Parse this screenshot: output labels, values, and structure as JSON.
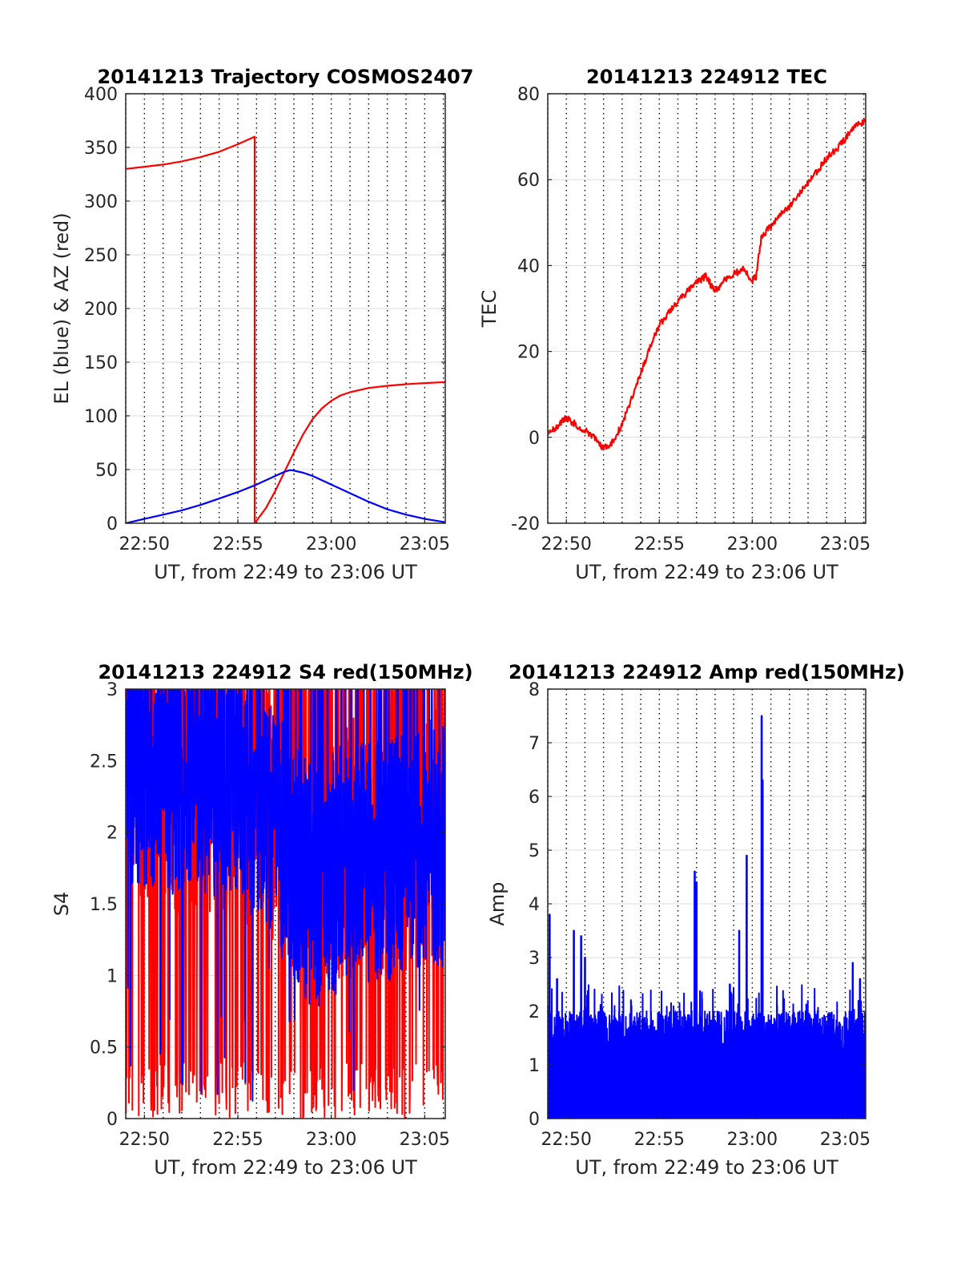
{
  "chart_data": [
    {
      "id": "trajectory",
      "type": "line",
      "title": "20141213 Trajectory COSMOS2407",
      "xlabel": "UT, from 22:49 to 23:06 UT",
      "ylabel": "EL (blue) & AZ (red)",
      "x_tick_labels": [
        "22:50",
        "22:55",
        "23:00",
        "23:05"
      ],
      "x_ticks_min": [
        50,
        55,
        60,
        65
      ],
      "xlim_min": [
        49,
        66.1
      ],
      "ylim": [
        0,
        400
      ],
      "y_ticks": [
        0,
        50,
        100,
        150,
        200,
        250,
        300,
        350,
        400
      ],
      "grid": true,
      "series": [
        {
          "color": "#ff0000",
          "x": [
            49,
            50,
            51,
            52,
            53,
            54,
            55,
            55.9,
            55.901,
            56.5,
            57,
            57.5,
            58,
            58.5,
            59,
            59.5,
            60,
            60.5,
            61,
            62,
            63,
            64,
            65,
            66.1
          ],
          "y": [
            330,
            332,
            334,
            337,
            341,
            346,
            353,
            360,
            0,
            14,
            30,
            48,
            66,
            83,
            97,
            107,
            114,
            119,
            122,
            126,
            128,
            129.5,
            130.5,
            131.5
          ]
        },
        {
          "color": "#0000ff",
          "x": [
            49,
            50,
            51,
            52,
            53,
            54,
            55,
            56,
            56.5,
            57,
            57.5,
            57.8,
            58,
            58.5,
            59,
            60,
            61,
            62,
            63,
            64,
            65,
            66.1
          ],
          "y": [
            0,
            4,
            8,
            12,
            17,
            23,
            29,
            36,
            40,
            44,
            48,
            49.5,
            49,
            47,
            44,
            36,
            28,
            20,
            13,
            8,
            4,
            1
          ]
        }
      ]
    },
    {
      "id": "tec",
      "type": "line",
      "title": "20141213 224912 TEC",
      "xlabel": "UT, from 22:49 to 23:06 UT",
      "ylabel": "TEC",
      "x_tick_labels": [
        "22:50",
        "22:55",
        "23:00",
        "23:05"
      ],
      "x_ticks_min": [
        50,
        55,
        60,
        65
      ],
      "xlim_min": [
        49,
        66.1
      ],
      "ylim": [
        -20,
        80
      ],
      "y_ticks": [
        -20,
        0,
        20,
        40,
        60,
        80
      ],
      "grid": true,
      "series": [
        {
          "color": "#ff0000",
          "x": [
            49,
            49.5,
            50,
            50.5,
            51,
            51.5,
            52,
            52.5,
            53,
            53.5,
            54,
            54.5,
            55,
            55.5,
            56,
            56.5,
            57,
            57.5,
            58,
            58.5,
            59,
            59.5,
            60,
            60.2,
            60.5,
            61,
            61.5,
            62,
            62.5,
            63,
            63.5,
            64,
            64.5,
            65,
            65.5,
            66.1
          ],
          "y": [
            1,
            2.5,
            4.5,
            3,
            1.5,
            0,
            -2.5,
            -1,
            3,
            9,
            15,
            21,
            26,
            29,
            31.5,
            34,
            36,
            37.5,
            34,
            36.5,
            38,
            39,
            36.5,
            37.5,
            47,
            49,
            52,
            54,
            56.5,
            59.5,
            62,
            65,
            67,
            69.5,
            72.5,
            73.5
          ]
        }
      ]
    },
    {
      "id": "s4",
      "type": "line",
      "title": "20141213 224912 S4 red(150MHz)",
      "xlabel": "UT, from 22:49 to 23:06 UT",
      "ylabel": "S4",
      "x_tick_labels": [
        "22:50",
        "22:55",
        "23:00",
        "23:05"
      ],
      "x_ticks_min": [
        50,
        55,
        60,
        65
      ],
      "xlim_min": [
        49,
        66.1
      ],
      "ylim": [
        0,
        3
      ],
      "y_ticks": [
        0,
        0.5,
        1,
        1.5,
        2,
        2.5,
        3
      ],
      "grid": true,
      "series": [
        {
          "color": "#ff0000",
          "style": "noisy",
          "base": [
            [
              49,
              2.4
            ],
            [
              52,
              2.3
            ],
            [
              55,
              2.3
            ],
            [
              57,
              2.1
            ],
            [
              59,
              1.8
            ],
            [
              61,
              1.9
            ],
            [
              63,
              1.9
            ],
            [
              66.1,
              2.0
            ]
          ],
          "range": [
            0,
            3
          ]
        },
        {
          "color": "#0000ff",
          "style": "noisy",
          "base": [
            [
              49,
              2.5
            ],
            [
              52,
              2.4
            ],
            [
              55,
              2.4
            ],
            [
              57,
              2.0
            ],
            [
              59,
              1.6
            ],
            [
              61,
              1.8
            ],
            [
              63,
              1.8
            ],
            [
              66.1,
              1.9
            ]
          ],
          "range": [
            0.8,
            3
          ]
        }
      ]
    },
    {
      "id": "amp",
      "type": "line",
      "title": "20141213 224912 Amp red(150MHz)",
      "xlabel": "UT, from 22:49 to 23:06 UT",
      "ylabel": "Amp",
      "x_tick_labels": [
        "22:50",
        "22:55",
        "23:00",
        "23:05"
      ],
      "x_ticks_min": [
        50,
        55,
        60,
        65
      ],
      "xlim_min": [
        49,
        66.1
      ],
      "ylim": [
        0,
        8
      ],
      "y_ticks": [
        0,
        1,
        2,
        3,
        4,
        5,
        6,
        7,
        8
      ],
      "grid": true,
      "series": [
        {
          "color": "#0000ff",
          "style": "spiky",
          "base_max": 1.7,
          "peaks": [
            [
              49.1,
              3.8
            ],
            [
              49.5,
              2.6
            ],
            [
              50.4,
              3.5
            ],
            [
              50.8,
              3.4
            ],
            [
              51.0,
              3.0
            ],
            [
              53.5,
              2.1
            ],
            [
              56.9,
              4.6
            ],
            [
              57.0,
              4.4
            ],
            [
              58.8,
              2.5
            ],
            [
              59.3,
              3.5
            ],
            [
              59.7,
              4.9
            ],
            [
              60.5,
              7.5
            ],
            [
              60.55,
              6.3
            ],
            [
              65.4,
              2.9
            ],
            [
              65.8,
              2.6
            ]
          ]
        }
      ]
    }
  ]
}
